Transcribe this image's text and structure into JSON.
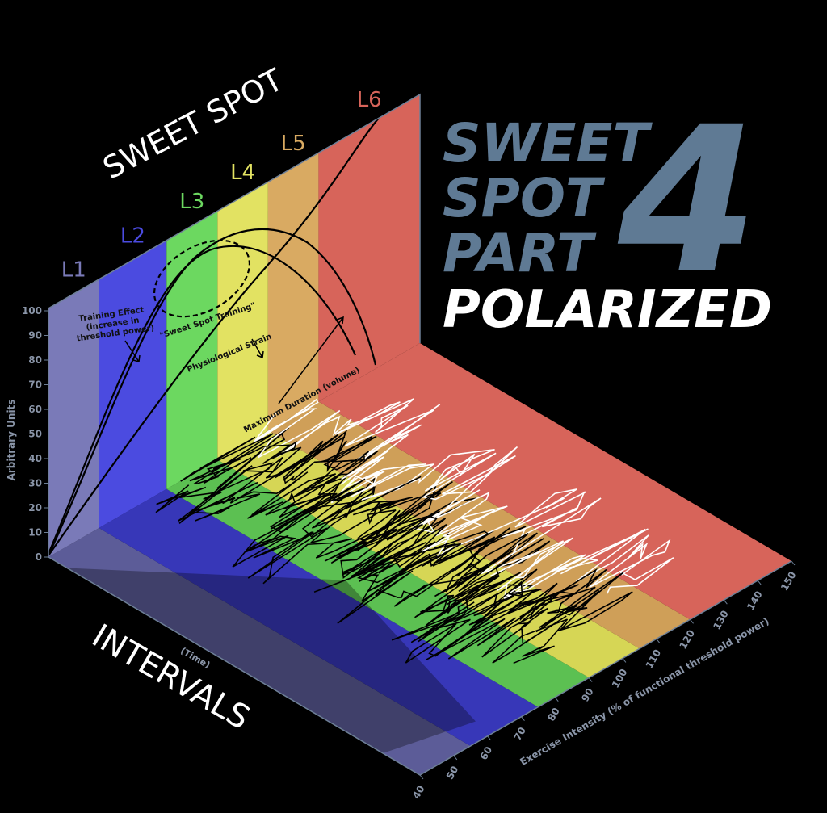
{
  "title": {
    "lines": [
      "SWEET",
      "SPOT",
      "PART"
    ],
    "number": "4",
    "subtitle": "POLARIZED"
  },
  "banner": {
    "top": "SWEET SPOT",
    "bottom": "INTERVALS"
  },
  "zones": [
    "L1",
    "L2",
    "L3",
    "L4",
    "L5",
    "L6"
  ],
  "annotations": {
    "training_effect": [
      "Training Effect",
      "(increase in",
      "threshold power)"
    ],
    "sweet_spot_training": "\"Sweet Spot Training\"",
    "physiological_strain": "Physiological Strain",
    "maximum_duration": "Maximum Duration (volume)"
  },
  "axes": {
    "y_label": "Arbitrary Units",
    "y_ticks": [
      0,
      10,
      20,
      30,
      40,
      50,
      60,
      70,
      80,
      90,
      100
    ],
    "x_label": "Exercise Intensity (% of functional threshold power)",
    "x_ticks": [
      40,
      50,
      60,
      70,
      80,
      90,
      100,
      110,
      120,
      130,
      140,
      150
    ],
    "depth_label": "(Time)"
  }
}
